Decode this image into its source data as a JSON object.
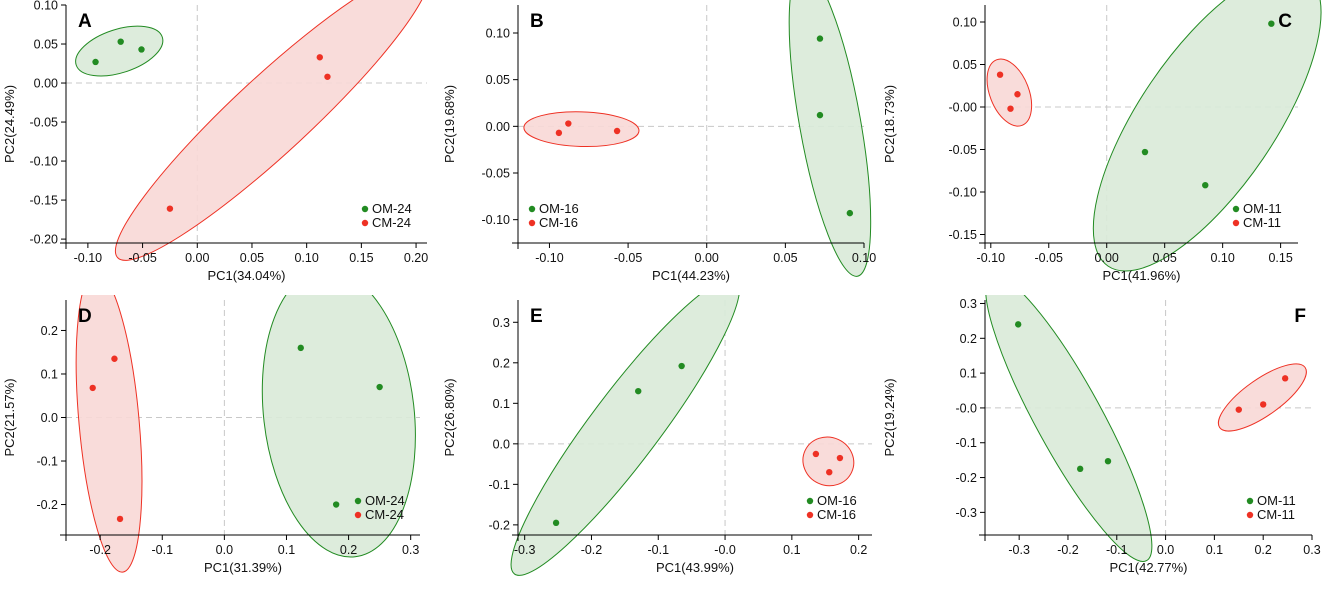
{
  "chart_data": [
    {
      "panel": "A",
      "type": "scatter",
      "xlabel": "PC1(34.04%)",
      "ylabel": "PC2(24.49%)",
      "xlim": [
        -0.12,
        0.21
      ],
      "ylim": [
        -0.205,
        0.1
      ],
      "xticks": [
        -0.1,
        -0.05,
        0.0,
        0.05,
        0.1,
        0.15,
        0.2
      ],
      "xtick_labels": [
        "-0.10",
        "-0.05",
        "0.00",
        "0.05",
        "0.10",
        "0.15",
        "0.20"
      ],
      "yticks": [
        0.1,
        0.05,
        0.0,
        -0.05,
        -0.1,
        -0.15,
        -0.2
      ],
      "ytick_labels": [
        "0.10",
        "0.05",
        "0.00",
        "-0.05",
        "-0.10",
        "-0.15",
        "-0.20"
      ],
      "legend_position": "bottom-right",
      "series": [
        {
          "name": "OM-24",
          "color": "#228B22",
          "fill": "#d9ead8",
          "points": [
            [
              -0.07,
              0.053
            ],
            [
              -0.051,
              0.043
            ],
            [
              -0.093,
              0.027
            ]
          ]
        },
        {
          "name": "CM-24",
          "color": "#ee3124",
          "fill": "#f8d8d6",
          "points": [
            [
              0.112,
              0.033
            ],
            [
              0.119,
              0.008
            ],
            [
              -0.025,
              -0.161
            ]
          ]
        }
      ]
    },
    {
      "panel": "B",
      "type": "scatter",
      "xlabel": "PC1(44.23%)",
      "ylabel": "PC2(19.68%)",
      "xlim": [
        -0.12,
        0.1
      ],
      "ylim": [
        -0.125,
        0.13
      ],
      "xticks": [
        -0.1,
        -0.05,
        0.0,
        0.05,
        0.1
      ],
      "xtick_labels": [
        "-0.10",
        "-0.05",
        "0.00",
        "0.05",
        "0.10"
      ],
      "yticks": [
        0.1,
        0.05,
        0.0,
        -0.05,
        -0.1
      ],
      "ytick_labels": [
        "0.10",
        "0.05",
        "0.00",
        "-0.05",
        "-0.10"
      ],
      "legend_position": "bottom-left",
      "series": [
        {
          "name": "OM-16",
          "color": "#228B22",
          "fill": "#d9ead8",
          "points": [
            [
              0.072,
              0.094
            ],
            [
              0.072,
              0.012
            ],
            [
              0.091,
              -0.093
            ]
          ]
        },
        {
          "name": "CM-16",
          "color": "#ee3124",
          "fill": "#f8d8d6",
          "points": [
            [
              -0.088,
              0.003
            ],
            [
              -0.094,
              -0.007
            ],
            [
              -0.057,
              -0.005
            ]
          ]
        }
      ]
    },
    {
      "panel": "C",
      "type": "scatter",
      "xlabel": "PC1(41.96%)",
      "ylabel": "PC2(18.73%)",
      "xlim": [
        -0.105,
        0.165
      ],
      "ylim": [
        -0.16,
        0.12
      ],
      "xticks": [
        -0.1,
        -0.05,
        0.0,
        0.05,
        0.1,
        0.15
      ],
      "xtick_labels": [
        "-0.10",
        "-0.05",
        "0.00",
        "0.05",
        "0.10",
        "0.15"
      ],
      "yticks": [
        0.1,
        0.05,
        0.0,
        -0.05,
        -0.1,
        -0.15
      ],
      "ytick_labels": [
        "0.10",
        "0.05",
        "-0.00",
        "-0.05",
        "-0.10",
        "-0.15"
      ],
      "legend_position": "bottom-right",
      "series": [
        {
          "name": "OM-11",
          "color": "#228B22",
          "fill": "#d9ead8",
          "points": [
            [
              0.142,
              0.098
            ],
            [
              0.033,
              -0.053
            ],
            [
              0.085,
              -0.092
            ]
          ]
        },
        {
          "name": "CM-11",
          "color": "#ee3124",
          "fill": "#f8d8d6",
          "points": [
            [
              -0.092,
              0.038
            ],
            [
              -0.077,
              0.015
            ],
            [
              -0.083,
              -0.002
            ]
          ]
        }
      ]
    },
    {
      "panel": "D",
      "type": "scatter",
      "xlabel": "PC1(31.39%)",
      "ylabel": "PC2(21.57%)",
      "xlim": [
        -0.255,
        0.315
      ],
      "ylim": [
        -0.27,
        0.27
      ],
      "xticks": [
        -0.2,
        -0.1,
        0.0,
        0.1,
        0.2,
        0.3
      ],
      "xtick_labels": [
        "-0.2",
        "-0.1",
        "0.0",
        "0.1",
        "0.2",
        "0.3"
      ],
      "yticks": [
        0.2,
        0.1,
        0.0,
        -0.1,
        -0.2
      ],
      "ytick_labels": [
        "0.2",
        "0.1",
        "0.0",
        "-0.1",
        "-0.2"
      ],
      "legend_position": "bottom-right",
      "series": [
        {
          "name": "OM-24",
          "color": "#228B22",
          "fill": "#d9ead8",
          "points": [
            [
              0.123,
              0.16
            ],
            [
              0.25,
              0.07
            ],
            [
              0.18,
              -0.2
            ]
          ]
        },
        {
          "name": "CM-24",
          "color": "#ee3124",
          "fill": "#f8d8d6",
          "points": [
            [
              -0.177,
              0.135
            ],
            [
              -0.212,
              0.068
            ],
            [
              -0.168,
              -0.233
            ]
          ]
        }
      ]
    },
    {
      "panel": "E",
      "type": "scatter",
      "xlabel": "PC1(43.99%)",
      "ylabel": "PC2(26.80%)",
      "xlim": [
        -0.31,
        0.22
      ],
      "ylim": [
        -0.225,
        0.355
      ],
      "xticks": [
        -0.3,
        -0.2,
        -0.1,
        0.0,
        0.1,
        0.2
      ],
      "xtick_labels": [
        "-0.3",
        "-0.2",
        "-0.1",
        "-0.0",
        "0.1",
        "0.2"
      ],
      "yticks": [
        0.3,
        0.2,
        0.1,
        0.0,
        -0.1,
        -0.2
      ],
      "ytick_labels": [
        "0.3",
        "0.2",
        "0.1",
        "0.0",
        "-0.1",
        "-0.2"
      ],
      "legend_position": "bottom-right",
      "series": [
        {
          "name": "OM-16",
          "color": "#228B22",
          "fill": "#d9ead8",
          "points": [
            [
              -0.065,
              0.192
            ],
            [
              -0.13,
              0.13
            ],
            [
              -0.253,
              -0.195
            ]
          ]
        },
        {
          "name": "CM-16",
          "color": "#ee3124",
          "fill": "#f8d8d6",
          "points": [
            [
              0.136,
              -0.025
            ],
            [
              0.172,
              -0.035
            ],
            [
              0.156,
              -0.07
            ]
          ]
        }
      ]
    },
    {
      "panel": "F",
      "type": "scatter",
      "xlabel": "PC1(42.77%)",
      "ylabel": "PC2(19.24%)",
      "xlim": [
        -0.37,
        0.3
      ],
      "ylim": [
        -0.365,
        0.31
      ],
      "xticks": [
        -0.3,
        -0.2,
        -0.1,
        0.0,
        0.1,
        0.2,
        0.3
      ],
      "xtick_labels": [
        "-0.3",
        "-0.2",
        "-0.1",
        "0.0",
        "0.1",
        "0.2",
        "0.3"
      ],
      "yticks": [
        0.3,
        0.2,
        0.1,
        0.0,
        -0.1,
        -0.2,
        -0.3
      ],
      "ytick_labels": [
        "0.3",
        "0.2",
        "0.1",
        "-0.0",
        "-0.1",
        "-0.2",
        "-0.3"
      ],
      "legend_position": "bottom-right",
      "series": [
        {
          "name": "OM-11",
          "color": "#228B22",
          "fill": "#d9ead8",
          "points": [
            [
              -0.302,
              0.24
            ],
            [
              -0.175,
              -0.175
            ],
            [
              -0.118,
              -0.153
            ]
          ]
        },
        {
          "name": "CM-11",
          "color": "#ee3124",
          "fill": "#f8d8d6",
          "points": [
            [
              0.15,
              -0.005
            ],
            [
              0.2,
              0.01
            ],
            [
              0.245,
              0.085
            ]
          ]
        }
      ]
    }
  ]
}
